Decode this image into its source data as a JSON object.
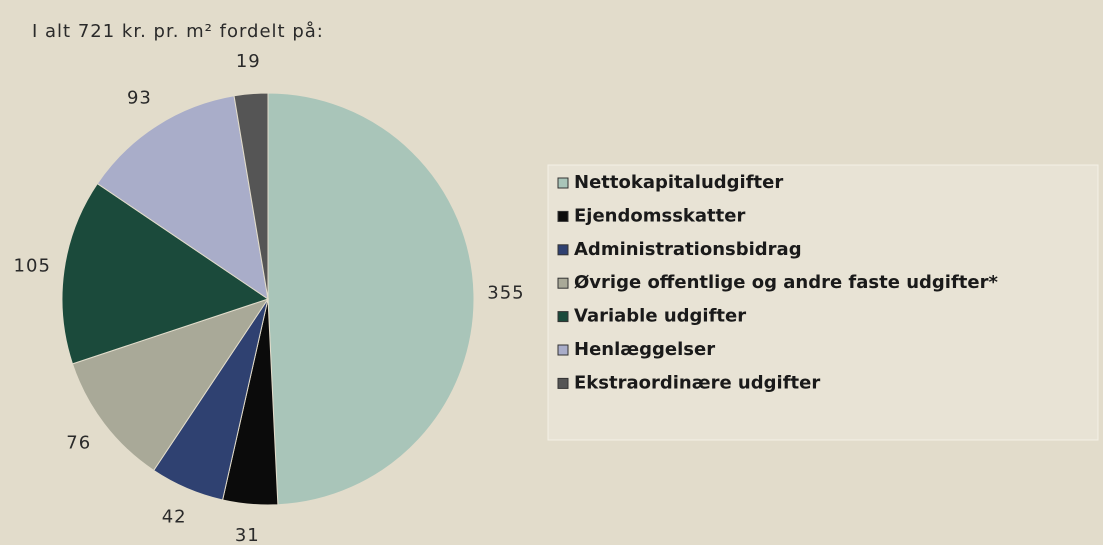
{
  "chart_data": {
    "type": "pie",
    "title": "I alt 721 kr. pr. m² fordelt på:",
    "categories": [
      "Nettokapitaludgifter",
      "Ejendomsskatter",
      "Administrationsbidrag",
      "Øvrige offentlige og andre faste udgifter*",
      "Variable udgifter",
      "Henlæggelser",
      "Ekstraordinære udgifter"
    ],
    "values": [
      355,
      31,
      42,
      76,
      105,
      93,
      19
    ],
    "colors": [
      "#a9c5b9",
      "#0b0b0b",
      "#2f4171",
      "#a9a998",
      "#1b4a3b",
      "#a9adc9",
      "#555555"
    ],
    "legend": "right"
  }
}
